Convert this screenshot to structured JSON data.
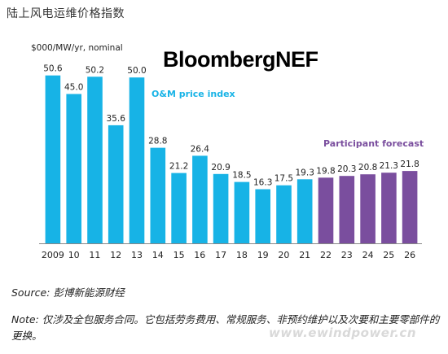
{
  "header": {
    "title": "陆上风电运维价格指数"
  },
  "brand": {
    "name": "BloombergNEF"
  },
  "footer": {
    "source": "Source: 彭博新能源财经",
    "note": "Note: 仅涉及全包服务合同。它包括劳务费用、常规服务、非预约维护以及次要和主要零部件的更换。",
    "watermark": "www.ewindpower.cn"
  },
  "chart_data": {
    "type": "bar",
    "title": "",
    "ylabel": "$000/MW/yr, nominal",
    "xlabel": "",
    "categories": [
      "2009",
      "10",
      "11",
      "12",
      "13",
      "14",
      "15",
      "16",
      "17",
      "18",
      "19",
      "20",
      "21",
      "22",
      "23",
      "24",
      "25",
      "26"
    ],
    "series": [
      {
        "name": "O&M price index",
        "color": "#17b3e6",
        "values": [
          50.6,
          45.0,
          50.2,
          35.6,
          50.0,
          28.8,
          21.2,
          26.4,
          20.9,
          18.5,
          16.3,
          17.5,
          19.3,
          null,
          null,
          null,
          null,
          null
        ]
      },
      {
        "name": "Participant forecast",
        "color": "#7a4e9e",
        "values": [
          null,
          null,
          null,
          null,
          null,
          null,
          null,
          null,
          null,
          null,
          null,
          null,
          null,
          19.8,
          20.3,
          20.8,
          21.3,
          21.8
        ]
      }
    ],
    "value_labels": [
      "50.6",
      "45.0",
      "50.2",
      "35.6",
      "50.0",
      "28.8",
      "21.2",
      "26.4",
      "20.9",
      "18.5",
      "16.3",
      "17.5",
      "19.3",
      "19.8",
      "20.3",
      "20.8",
      "21.3",
      "21.8"
    ],
    "ylim": [
      0,
      52
    ],
    "grid": false,
    "legend": "inline labels"
  }
}
